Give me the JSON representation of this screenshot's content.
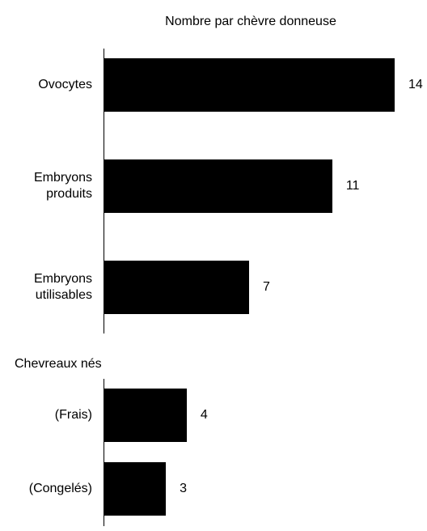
{
  "chart_data": {
    "type": "bar",
    "title": "Nombre par chèvre donneuse",
    "color": "#000000",
    "groups": [
      {
        "categories": [
          "Ovocytes",
          "Embryons produits",
          "Embryons utilisables"
        ],
        "values": [
          14,
          11,
          7
        ]
      },
      {
        "label": "Chevreaux nés",
        "categories": [
          "(Frais)",
          "(Congelés)"
        ],
        "values": [
          4,
          3
        ]
      }
    ]
  }
}
